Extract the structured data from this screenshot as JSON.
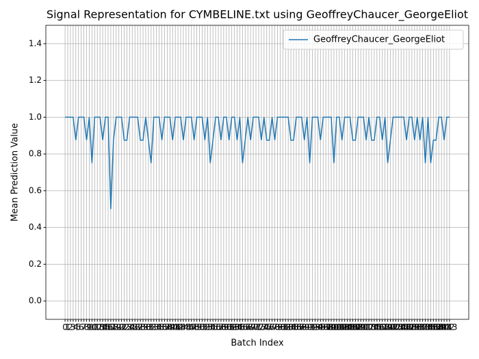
{
  "chart_data": {
    "type": "line",
    "title": "Signal Representation for CYMBELINE.txt using GeoffreyChaucer_GeorgeEliot",
    "x_label": "Batch Index",
    "y_label": "Mean Prediction Value",
    "categories": [
      0,
      1,
      2,
      3,
      4,
      5,
      6,
      7,
      8,
      9,
      10,
      11,
      12,
      13,
      14,
      15,
      16,
      17,
      18,
      19,
      20,
      21,
      22,
      23,
      24,
      25,
      26,
      27,
      28,
      29,
      30,
      31,
      32,
      33,
      34,
      35,
      36,
      37,
      38,
      39,
      40,
      41,
      42,
      43,
      44,
      45,
      46,
      47,
      48,
      49,
      50,
      51,
      52,
      53,
      54,
      55,
      56,
      57,
      58,
      59,
      60,
      61,
      62,
      63,
      64,
      65,
      66,
      67,
      68,
      69,
      70,
      71,
      72,
      73,
      74,
      75,
      76,
      77,
      78,
      79,
      80,
      81,
      82,
      83,
      84,
      85,
      86,
      87,
      88,
      89,
      90,
      91,
      92,
      93,
      94,
      95,
      96,
      97,
      98,
      99,
      100,
      101,
      102,
      103,
      104,
      105,
      106,
      107,
      108,
      109,
      110,
      111,
      112,
      113,
      114,
      115,
      116,
      117,
      118,
      119,
      120,
      121,
      122,
      123,
      124,
      125,
      126,
      127,
      128,
      129,
      130,
      131,
      132,
      133,
      134,
      135,
      136,
      137,
      138,
      139,
      140,
      141,
      142,
      143
    ],
    "xlim": [
      -7.15,
      150.15
    ],
    "series": [
      {
        "name": "GeoffreyChaucer_GeorgeEliot",
        "color": "#1f77b4",
        "values": [
          1,
          1,
          1,
          1,
          0.875,
          1,
          1,
          1,
          0.875,
          1,
          0.75,
          1,
          1,
          1,
          0.875,
          1,
          1,
          0.5,
          0.875,
          1,
          1,
          1,
          0.875,
          0.875,
          1,
          1,
          1,
          1,
          0.875,
          0.875,
          1,
          0.875,
          0.75,
          1,
          1,
          1,
          0.875,
          1,
          1,
          1,
          0.875,
          1,
          1,
          1,
          0.875,
          1,
          1,
          1,
          0.875,
          1,
          1,
          1,
          0.875,
          1,
          0.75,
          0.875,
          1,
          1,
          0.875,
          1,
          1,
          0.875,
          1,
          1,
          0.875,
          1,
          0.75,
          0.875,
          1,
          0.875,
          1,
          1,
          1,
          0.875,
          1,
          0.875,
          0.875,
          1,
          0.875,
          1,
          1,
          1,
          1,
          1,
          0.875,
          0.875,
          1,
          1,
          1,
          0.875,
          1,
          0.75,
          1,
          1,
          1,
          0.875,
          1,
          1,
          1,
          1,
          0.75,
          1,
          1,
          0.875,
          1,
          1,
          1,
          0.875,
          0.875,
          1,
          1,
          1,
          0.875,
          1,
          0.875,
          0.875,
          1,
          1,
          0.875,
          1,
          0.75,
          0.875,
          1,
          1,
          1,
          1,
          1,
          0.875,
          1,
          1,
          0.875,
          1,
          0.875,
          1,
          0.75,
          1,
          0.75,
          0.875,
          0.875,
          1,
          1,
          0.875,
          1,
          1
        ]
      }
    ],
    "ylim": [
      -0.1,
      1.5
    ],
    "yticks": [
      {
        "value": 0,
        "label": "0.0"
      },
      {
        "value": 0.2,
        "label": "0.2"
      },
      {
        "value": 0.4,
        "label": "0.4"
      },
      {
        "value": 0.6,
        "label": "0.6"
      },
      {
        "value": 0.8,
        "label": "0.8"
      },
      {
        "value": 1,
        "label": "1.0"
      },
      {
        "value": 1.2,
        "label": "1.2"
      },
      {
        "value": 1.4,
        "label": "1.4"
      }
    ],
    "grid": true,
    "legend": "upper right"
  }
}
